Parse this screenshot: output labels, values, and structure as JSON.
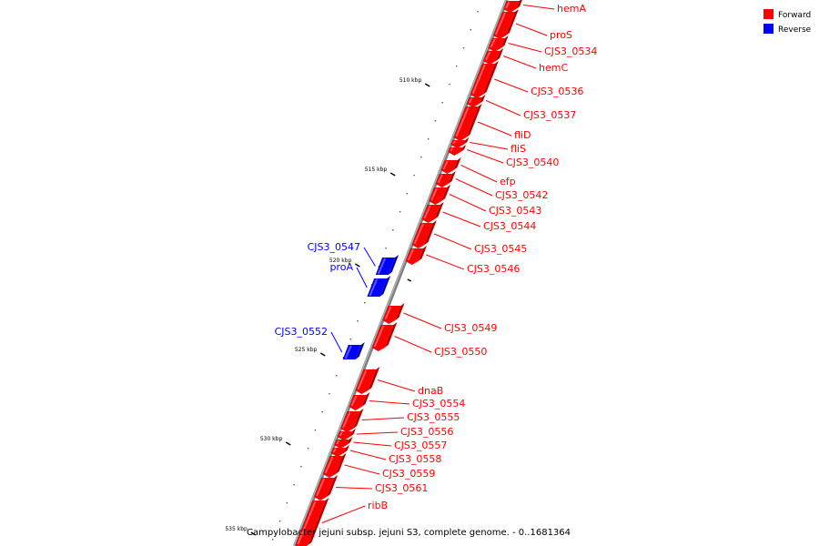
{
  "caption": "Campylobacter jejuni subsp. jejuni S3, complete genome. - 0..1681364",
  "colors": {
    "forward": "#ff0000",
    "reverse": "#0000ff",
    "backbone": "#808080"
  },
  "legend": [
    {
      "label": "Forward",
      "color": "#ff0000",
      "strand": "forward"
    },
    {
      "label": "Reverse",
      "color": "#0000ff",
      "strand": "reverse"
    }
  ],
  "ticks": [
    {
      "label": "510 kbp"
    },
    {
      "label": "515 kbp"
    },
    {
      "label": "520 kbp"
    },
    {
      "label": "525 kbp"
    },
    {
      "label": "530 kbp"
    },
    {
      "label": "535 kbp"
    }
  ],
  "genes": [
    {
      "label": "hemA",
      "strand": "forward"
    },
    {
      "label": "proS",
      "strand": "forward"
    },
    {
      "label": "CJS3_0534",
      "strand": "forward"
    },
    {
      "label": "hemC",
      "strand": "forward"
    },
    {
      "label": "CJS3_0536",
      "strand": "forward"
    },
    {
      "label": "CJS3_0537",
      "strand": "forward"
    },
    {
      "label": "fliD",
      "strand": "forward"
    },
    {
      "label": "fliS",
      "strand": "forward"
    },
    {
      "label": "CJS3_0540",
      "strand": "forward"
    },
    {
      "label": "efp",
      "strand": "forward"
    },
    {
      "label": "CJS3_0542",
      "strand": "forward"
    },
    {
      "label": "CJS3_0543",
      "strand": "forward"
    },
    {
      "label": "CJS3_0544",
      "strand": "forward"
    },
    {
      "label": "CJS3_0545",
      "strand": "forward"
    },
    {
      "label": "CJS3_0546",
      "strand": "forward"
    },
    {
      "label": "CJS3_0547",
      "strand": "reverse"
    },
    {
      "label": "proA",
      "strand": "reverse"
    },
    {
      "label": "CJS3_0549",
      "strand": "forward"
    },
    {
      "label": "CJS3_0550",
      "strand": "forward"
    },
    {
      "label": "CJS3_0552",
      "strand": "reverse"
    },
    {
      "label": "dnaB",
      "strand": "forward"
    },
    {
      "label": "CJS3_0554",
      "strand": "forward"
    },
    {
      "label": "CJS3_0555",
      "strand": "forward"
    },
    {
      "label": "CJS3_0556",
      "strand": "forward"
    },
    {
      "label": "CJS3_0557",
      "strand": "forward"
    },
    {
      "label": "CJS3_0558",
      "strand": "forward"
    },
    {
      "label": "CJS3_0559",
      "strand": "forward"
    },
    {
      "label": "CJS3_0561",
      "strand": "forward"
    },
    {
      "label": "ribB",
      "strand": "forward"
    }
  ]
}
